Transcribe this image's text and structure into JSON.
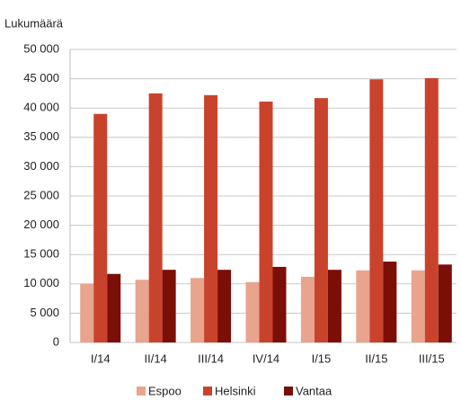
{
  "chart_data": {
    "type": "bar",
    "y_label": "Lukumäärä",
    "categories": [
      "I/14",
      "II/14",
      "III/14",
      "IV/14",
      "I/15",
      "II/15",
      "III/15"
    ],
    "series": [
      {
        "name": "Espoo",
        "color": "#e8a48c",
        "values": [
          10000,
          10700,
          11000,
          10300,
          11200,
          12300,
          12300
        ]
      },
      {
        "name": "Helsinki",
        "color": "#c9432c",
        "values": [
          39000,
          42500,
          42200,
          41100,
          41700,
          44900,
          45100
        ]
      },
      {
        "name": "Vantaa",
        "color": "#7b0f08",
        "values": [
          11700,
          12400,
          12400,
          12900,
          12400,
          13800,
          13300
        ]
      }
    ],
    "ylim": [
      0,
      50000
    ],
    "yticks": [
      0,
      {
        "value": 5000,
        "label": "5 000"
      },
      {
        "value": 10000,
        "label": "10 000"
      },
      {
        "value": 15000,
        "label": "15 000"
      },
      {
        "value": 20000,
        "label": "20 000"
      },
      {
        "value": 25000,
        "label": "25 000"
      },
      {
        "value": 30000,
        "label": "30 000"
      },
      {
        "value": 35000,
        "label": "35 000"
      },
      {
        "value": 40000,
        "label": "40 000"
      },
      {
        "value": 45000,
        "label": "45 000"
      },
      {
        "value": 50000,
        "label": "50 000"
      }
    ],
    "grid": true,
    "legend": "bottom"
  }
}
